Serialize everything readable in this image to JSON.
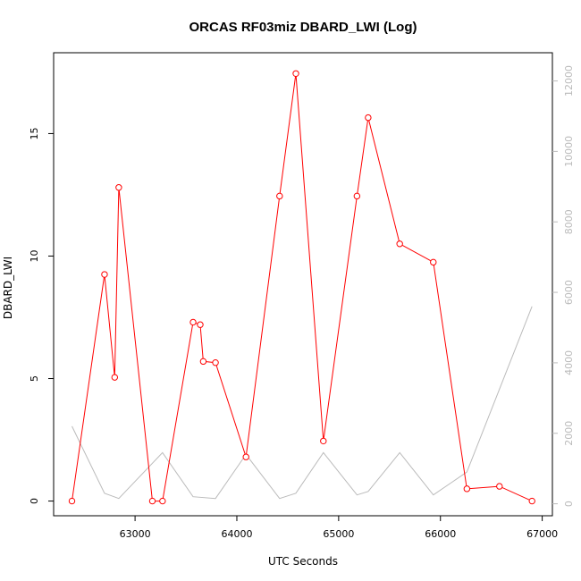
{
  "chart_data": {
    "type": "line",
    "title": "ORCAS RF03miz DBARD_LWI (Log)",
    "xlabel": "UTC Seconds",
    "ylabel": "DBARD_LWI",
    "xlim": [
      62200,
      67100
    ],
    "ylim": [
      -0.6,
      18.3
    ],
    "y2lim": [
      -340,
      12800
    ],
    "x_ticks": [
      63000,
      64000,
      65000,
      66000,
      67000
    ],
    "y_ticks": [
      0,
      5,
      10,
      15
    ],
    "y2_ticks": [
      0,
      2000,
      4000,
      6000,
      8000,
      10000,
      12000
    ],
    "grid": false,
    "series": [
      {
        "color": "#ff0000",
        "axis": "left",
        "marker": "open-circle",
        "x": [
          62380,
          62700,
          62800,
          62840,
          63170,
          63270,
          63570,
          63640,
          63670,
          63790,
          64090,
          64420,
          64580,
          64850,
          65180,
          65290,
          65600,
          65930,
          66260,
          66580,
          66900
        ],
        "y": [
          0.0,
          9.25,
          5.05,
          12.8,
          0.0,
          0.0,
          7.3,
          7.2,
          5.7,
          5.65,
          1.8,
          12.45,
          17.45,
          2.45,
          12.45,
          15.65,
          10.5,
          9.75,
          0.5,
          0.6,
          0.0
        ]
      },
      {
        "color": "#bbbbbb",
        "axis": "right",
        "marker": "none",
        "x": [
          62380,
          62700,
          62840,
          63270,
          63570,
          63790,
          64090,
          64420,
          64580,
          64850,
          65180,
          65290,
          65600,
          65930,
          66260,
          66900
        ],
        "y": [
          2200,
          300,
          150,
          1450,
          200,
          150,
          1400,
          150,
          300,
          1450,
          250,
          350,
          1450,
          250,
          900,
          5600
        ]
      }
    ]
  }
}
